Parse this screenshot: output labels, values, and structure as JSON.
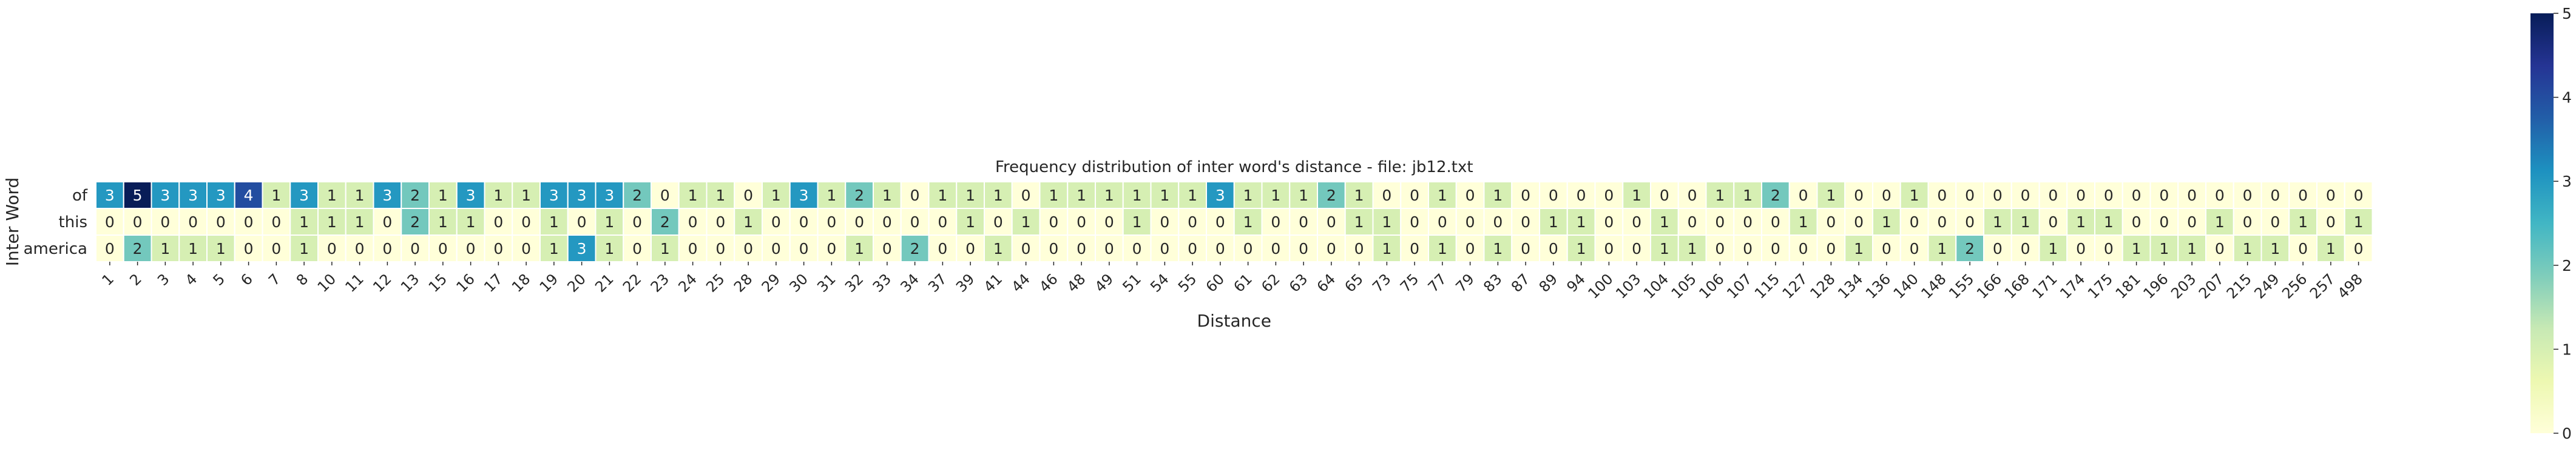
{
  "chart_data": {
    "type": "heatmap",
    "title": "Frequency distribution of inter word's distance - file: jb12.txt",
    "xlabel": "Distance",
    "ylabel": "Inter Word",
    "rows": [
      "of",
      "this",
      "america"
    ],
    "columns": [
      "1",
      "2",
      "3",
      "4",
      "5",
      "6",
      "7",
      "8",
      "10",
      "11",
      "12",
      "13",
      "15",
      "16",
      "17",
      "18",
      "19",
      "20",
      "21",
      "22",
      "23",
      "24",
      "25",
      "28",
      "29",
      "30",
      "31",
      "32",
      "33",
      "34",
      "37",
      "39",
      "41",
      "44",
      "46",
      "48",
      "49",
      "51",
      "54",
      "55",
      "60",
      "61",
      "62",
      "63",
      "64",
      "65",
      "73",
      "75",
      "77",
      "79",
      "83",
      "87",
      "89",
      "94",
      "100",
      "103",
      "104",
      "105",
      "106",
      "107",
      "115",
      "127",
      "128",
      "134",
      "136",
      "140",
      "148",
      "155",
      "166",
      "168",
      "171",
      "174",
      "175",
      "181",
      "196",
      "203",
      "207",
      "215",
      "249",
      "256",
      "257",
      "498"
    ],
    "values": [
      [
        3,
        5,
        3,
        3,
        3,
        4,
        1,
        3,
        1,
        1,
        3,
        2,
        1,
        3,
        1,
        1,
        3,
        3,
        3,
        2,
        0,
        1,
        1,
        0,
        1,
        3,
        1,
        2,
        1,
        0,
        1,
        1,
        1,
        0,
        1,
        1,
        1,
        1,
        1,
        1,
        3,
        1,
        1,
        1,
        2,
        1,
        0,
        0,
        1,
        0,
        1,
        0,
        0,
        0,
        0,
        1,
        0,
        0,
        1,
        1,
        2,
        0,
        1,
        0,
        0,
        1,
        0,
        0,
        0,
        0,
        0,
        0,
        0,
        0,
        0,
        0,
        0,
        0,
        0,
        0,
        0,
        0
      ],
      [
        0,
        0,
        0,
        0,
        0,
        0,
        0,
        1,
        1,
        1,
        0,
        2,
        1,
        1,
        0,
        0,
        1,
        0,
        1,
        0,
        2,
        0,
        0,
        1,
        0,
        0,
        0,
        0,
        0,
        0,
        0,
        1,
        0,
        1,
        0,
        0,
        0,
        1,
        0,
        0,
        0,
        1,
        0,
        0,
        0,
        1,
        1,
        0,
        0,
        0,
        0,
        0,
        1,
        1,
        0,
        0,
        1,
        0,
        0,
        0,
        0,
        1,
        0,
        0,
        1,
        0,
        0,
        0,
        1,
        1,
        0,
        1,
        1,
        0,
        0,
        0,
        1,
        0,
        0,
        1,
        0,
        1
      ],
      [
        0,
        2,
        1,
        1,
        1,
        0,
        0,
        1,
        0,
        0,
        0,
        0,
        0,
        0,
        0,
        0,
        1,
        3,
        1,
        0,
        1,
        0,
        0,
        0,
        0,
        0,
        0,
        1,
        0,
        2,
        0,
        0,
        1,
        0,
        0,
        0,
        0,
        0,
        0,
        0,
        0,
        0,
        0,
        0,
        0,
        0,
        1,
        0,
        1,
        0,
        1,
        0,
        0,
        1,
        0,
        0,
        1,
        1,
        0,
        0,
        0,
        0,
        0,
        1,
        0,
        0,
        1,
        2,
        0,
        0,
        1,
        0,
        0,
        1,
        1,
        1,
        0,
        1,
        1,
        0,
        1,
        0
      ]
    ],
    "vmin": 0,
    "vmax": 5,
    "colorbar_ticks": [
      "0",
      "1",
      "2",
      "3",
      "4",
      "5"
    ],
    "colormap": [
      "#ffffd9",
      "#edf8b1",
      "#c7e9b4",
      "#7fcdbb",
      "#41b6c4",
      "#1d91c0",
      "#225ea8",
      "#253494",
      "#081d58"
    ]
  }
}
